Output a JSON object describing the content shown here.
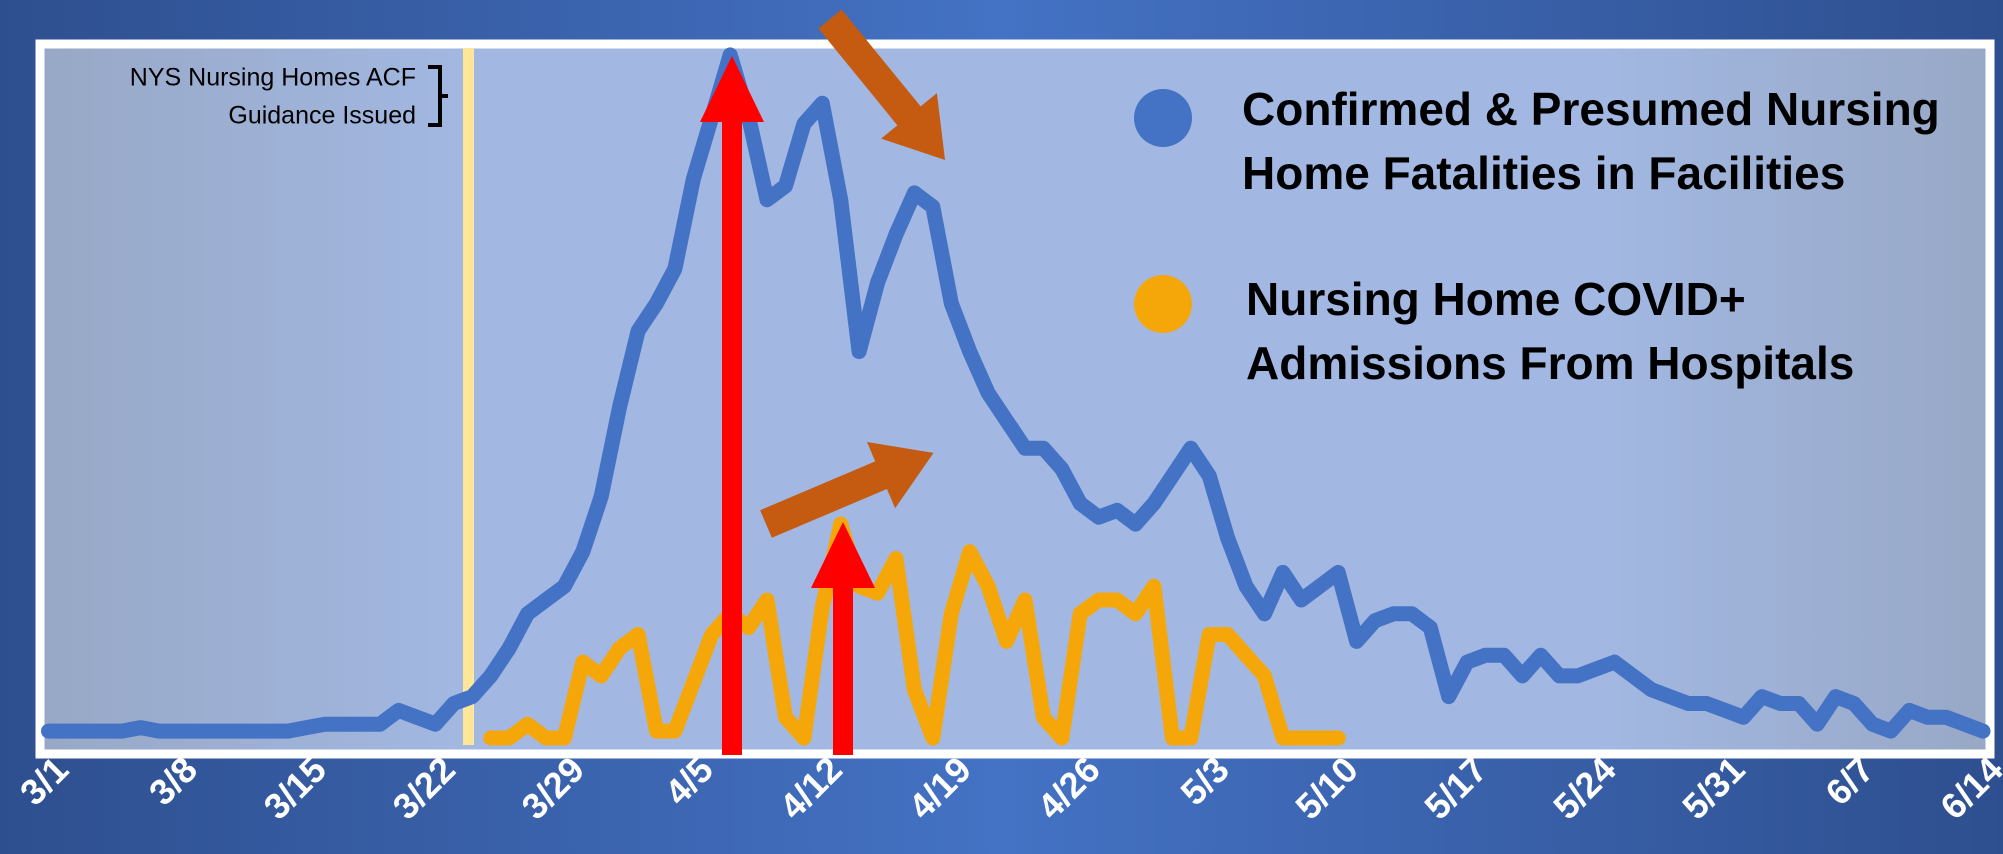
{
  "chart_data": {
    "type": "line",
    "annotation": [
      "NYS Nursing Homes ACF",
      "Guidance Issued"
    ],
    "categories": [
      "3/1",
      null,
      null,
      null,
      null,
      null,
      null,
      "3/8",
      null,
      null,
      null,
      null,
      null,
      null,
      "3/15",
      null,
      null,
      null,
      null,
      null,
      null,
      "3/22",
      null,
      null,
      null,
      null,
      null,
      null,
      "3/29",
      null,
      null,
      null,
      null,
      null,
      null,
      "4/5",
      null,
      null,
      null,
      null,
      null,
      null,
      "4/12",
      null,
      null,
      null,
      null,
      null,
      null,
      "4/19",
      null,
      null,
      null,
      null,
      null,
      null,
      "4/26",
      null,
      null,
      null,
      null,
      null,
      null,
      "5/3",
      null,
      null,
      null,
      null,
      null,
      null,
      "5/10",
      null,
      null,
      null,
      null,
      null,
      null,
      "5/17",
      null,
      null,
      null,
      null,
      null,
      null,
      "5/24",
      null,
      null,
      null,
      null,
      null,
      null,
      "5/31",
      null,
      null,
      null,
      null,
      null,
      null,
      "6/7",
      null,
      null,
      null,
      null,
      null,
      null,
      "6/14"
    ],
    "series": [
      {
        "name": "Confirmed & Presumed Nursing Home Fatalities in Facilities",
        "color": "#4472c4",
        "values": [
          1,
          1,
          1,
          1,
          1,
          1.5,
          1,
          1,
          1,
          1,
          1,
          1,
          1,
          1,
          1.5,
          2,
          2,
          2,
          2,
          4,
          3,
          2,
          5,
          6,
          9,
          13,
          18,
          20,
          22,
          27,
          35,
          48,
          59,
          63,
          68,
          81,
          90,
          99,
          90,
          78,
          80,
          89,
          92,
          78,
          56,
          66,
          73,
          79,
          77,
          63,
          56,
          50,
          46,
          42,
          42,
          39,
          34,
          32,
          33,
          31,
          34,
          38,
          42,
          38,
          29,
          22,
          18,
          24,
          20,
          22,
          24,
          14,
          17,
          18,
          18,
          16,
          6,
          11,
          12,
          12,
          9,
          12,
          9,
          9,
          10,
          11,
          9,
          7,
          6,
          5,
          5,
          4,
          3,
          6,
          5,
          5,
          2,
          6,
          5,
          2,
          1,
          4,
          3,
          3,
          2,
          1
        ]
      },
      {
        "name": "Nursing Home COVID+ Admissions From Hospitals",
        "color": "#f5a70a",
        "values": [
          null,
          null,
          null,
          null,
          null,
          null,
          null,
          null,
          null,
          null,
          null,
          null,
          null,
          null,
          null,
          null,
          null,
          null,
          null,
          null,
          null,
          null,
          null,
          null,
          0,
          0,
          2,
          0,
          0,
          11,
          9,
          13,
          15,
          1,
          1,
          8,
          15,
          18,
          16,
          20,
          3,
          0,
          19,
          31,
          22,
          21,
          26,
          7,
          0,
          18,
          27,
          22,
          14,
          20,
          3,
          0,
          18,
          20,
          20,
          18,
          22,
          0,
          0,
          15,
          15,
          12,
          9,
          0,
          0,
          0,
          0,
          null,
          null,
          null,
          null,
          null,
          null,
          null,
          null,
          null,
          null,
          null,
          null,
          null,
          null,
          null,
          null,
          null,
          null,
          null,
          null,
          null,
          null,
          null,
          null,
          null,
          null,
          null,
          null,
          null,
          null,
          null,
          null,
          null,
          null,
          null
        ]
      }
    ]
  }
}
